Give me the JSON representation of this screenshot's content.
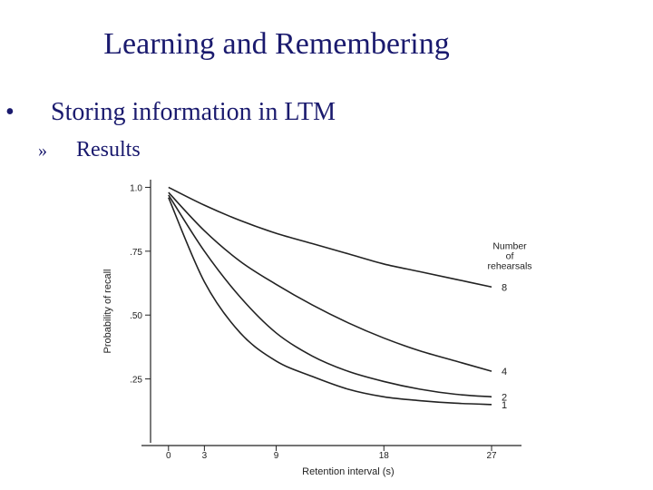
{
  "slide": {
    "title": "Learning and Remembering",
    "bullet_marker": "•",
    "bullet_text": "Storing information in LTM",
    "sub_marker": "»",
    "sub_text": "Results"
  },
  "colors": {
    "title": "#1a1a6e",
    "ink": "#222222"
  },
  "chart_data": {
    "type": "line",
    "xlabel": "Retention interval (s)",
    "ylabel": "Probability of recall",
    "x_ticks": [
      0,
      3,
      9,
      18,
      27
    ],
    "y_ticks": [
      1.0,
      0.75,
      0.5,
      0.25
    ],
    "y_tick_labels": [
      "1.0",
      ".75",
      ".50",
      ".25"
    ],
    "xlim": [
      -1.5,
      29.5
    ],
    "ylim": [
      0.0,
      1.03
    ],
    "legend_title": [
      "Number",
      "of",
      "rehearsals"
    ],
    "series": [
      {
        "name": "8",
        "x": [
          0,
          3,
          6,
          9,
          12,
          15,
          18,
          21,
          24,
          27
        ],
        "y": [
          1.0,
          0.93,
          0.87,
          0.82,
          0.78,
          0.74,
          0.7,
          0.67,
          0.64,
          0.61
        ]
      },
      {
        "name": "4",
        "x": [
          0,
          3,
          6,
          9,
          12,
          15,
          18,
          21,
          24,
          27
        ],
        "y": [
          0.98,
          0.83,
          0.71,
          0.62,
          0.54,
          0.47,
          0.41,
          0.36,
          0.32,
          0.28
        ]
      },
      {
        "name": "2",
        "x": [
          0,
          3,
          6,
          9,
          12,
          15,
          18,
          21,
          24,
          27
        ],
        "y": [
          0.97,
          0.75,
          0.57,
          0.43,
          0.34,
          0.28,
          0.24,
          0.21,
          0.19,
          0.18
        ]
      },
      {
        "name": "1",
        "x": [
          0,
          3,
          6,
          9,
          12,
          15,
          18,
          21,
          24,
          27
        ],
        "y": [
          0.96,
          0.63,
          0.43,
          0.32,
          0.26,
          0.21,
          0.18,
          0.165,
          0.155,
          0.15
        ]
      }
    ]
  }
}
